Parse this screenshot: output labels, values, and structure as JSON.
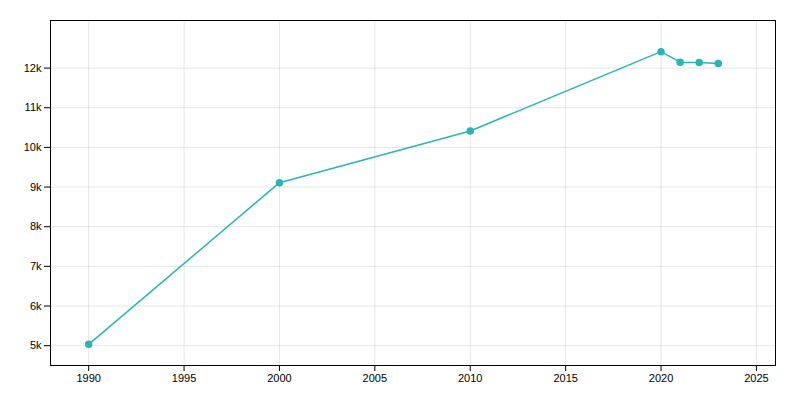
{
  "chart_data": {
    "type": "line",
    "x": [
      1990,
      2000,
      2010,
      2020,
      2021,
      2022,
      2023
    ],
    "values": [
      5033,
      9110,
      10415,
      12415,
      12150,
      12140,
      12115
    ],
    "color": "#2ab5b5",
    "marker": "circle",
    "xlim": [
      1988,
      2026
    ],
    "ylim": [
      4500,
      13200
    ],
    "xticks": [
      1990,
      1995,
      2000,
      2005,
      2010,
      2015,
      2020,
      2025
    ],
    "yticks": [
      {
        "value": 5000,
        "label": "5k"
      },
      {
        "value": 6000,
        "label": "6k"
      },
      {
        "value": 7000,
        "label": "7k"
      },
      {
        "value": 8000,
        "label": "8k"
      },
      {
        "value": 9000,
        "label": "9k"
      },
      {
        "value": 10000,
        "label": "10k"
      },
      {
        "value": 11000,
        "label": "11k"
      },
      {
        "value": 12000,
        "label": "12k"
      }
    ],
    "grid": true
  }
}
